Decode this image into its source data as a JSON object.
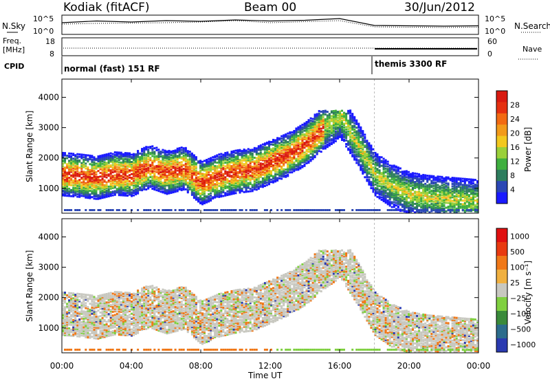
{
  "header": {
    "station": "Kodiak (fitACF)",
    "beam": "Beam 00",
    "date": "30/Jun/2012"
  },
  "summary": {
    "nsky_label": "N.Sky",
    "nsearch_label": "N.Search",
    "freq_label_1": "Freq.",
    "freq_label_2": "[MHz]",
    "nave_label": "Nave",
    "cpid_label": "CPID",
    "noise_ticks_left": [
      "10^5",
      "10^0"
    ],
    "noise_ticks_right": [
      "10^5",
      "10^0"
    ],
    "freq_ticks": [
      "18",
      "8"
    ],
    "nave_ticks": [
      "60",
      "0"
    ],
    "cpid_modes": [
      {
        "label": "normal (fast) 151 RF",
        "start_ut": 0,
        "end_ut": 18
      },
      {
        "label": "themis 3300 RF",
        "start_ut": 18,
        "end_ut": 24
      }
    ]
  },
  "axes": {
    "x_ticks": [
      "00:00",
      "04:00",
      "08:00",
      "12:00",
      "16:00",
      "20:00",
      "00:00"
    ],
    "xlabel": "Time UT",
    "ylabel": "Slant Range [km]",
    "y_ticks": [
      "1000",
      "2000",
      "3000",
      "4000"
    ],
    "ylim": [
      180,
      4600
    ],
    "xlim_hours": [
      0,
      24
    ]
  },
  "colorbars": {
    "power": {
      "label": "Power [dB]",
      "ticks": [
        "4",
        "8",
        "12",
        "16",
        "20",
        "24",
        "28"
      ],
      "colors": [
        "#1a1aff",
        "#2b47b5",
        "#2e7d5e",
        "#3faf3f",
        "#9ad03a",
        "#f2c81f",
        "#f29a1a",
        "#f26a12",
        "#e53010",
        "#d91a10"
      ]
    },
    "velocity": {
      "label": "Velocity [m s⁻¹]",
      "ticks": [
        "1000",
        "500",
        "100",
        "25",
        "−25",
        "−100",
        "−500",
        "−1000"
      ],
      "colors": [
        "#2a3ab0",
        "#2c6c8c",
        "#3a8a3a",
        "#7fd040",
        "#c8c8c0",
        "#f0b040",
        "#f07818",
        "#e83a10",
        "#e01010"
      ]
    }
  },
  "chart_data": [
    {
      "type": "line",
      "title": "N.Sky / N.Search",
      "x": [
        0,
        2,
        4,
        6,
        8,
        10,
        12,
        14,
        16,
        18,
        20,
        22,
        24
      ],
      "series": [
        {
          "name": "N.Sky",
          "values": [
            3,
            3.5,
            3.2,
            3.6,
            3.4,
            3.8,
            3.5,
            3.7,
            4.2,
            2.2,
            2.1,
            2.0,
            2.1
          ]
        },
        {
          "name": "N.Search",
          "values": [
            2.6,
            2.8,
            2.9,
            3.0,
            3.2,
            3.6,
            3.0,
            3.3,
            3.6,
            1.8,
            1.7,
            1.6,
            1.7
          ]
        }
      ]
    },
    {
      "type": "heatmap",
      "title": "Power",
      "xlabel": "Time UT",
      "ylabel": "Slant Range [km]",
      "zlabel": "Power [dB]",
      "xlim": [
        0,
        24
      ],
      "ylim": [
        180,
        4600
      ],
      "ridge": {
        "x": [
          0,
          1,
          2,
          3,
          4,
          5,
          6,
          7,
          8,
          9,
          10,
          11,
          12,
          13,
          14,
          15,
          16
        ],
        "y": [
          1500,
          1450,
          1380,
          1520,
          1480,
          1750,
          1550,
          1700,
          1200,
          1450,
          1580,
          1650,
          1900,
          2150,
          2500,
          3000,
          3400
        ]
      },
      "trailing_band": {
        "x": [
          16,
          17,
          18,
          19,
          20,
          21,
          22,
          23,
          24
        ],
        "y": [
          3400,
          2500,
          1500,
          1100,
          850,
          750,
          700,
          650,
          600
        ]
      }
    },
    {
      "type": "heatmap",
      "title": "Velocity",
      "xlabel": "Time UT",
      "ylabel": "Slant Range [km]",
      "zlabel": "Velocity [m s⁻¹]",
      "xlim": [
        0,
        24
      ],
      "ylim": [
        180,
        4600
      ]
    }
  ]
}
